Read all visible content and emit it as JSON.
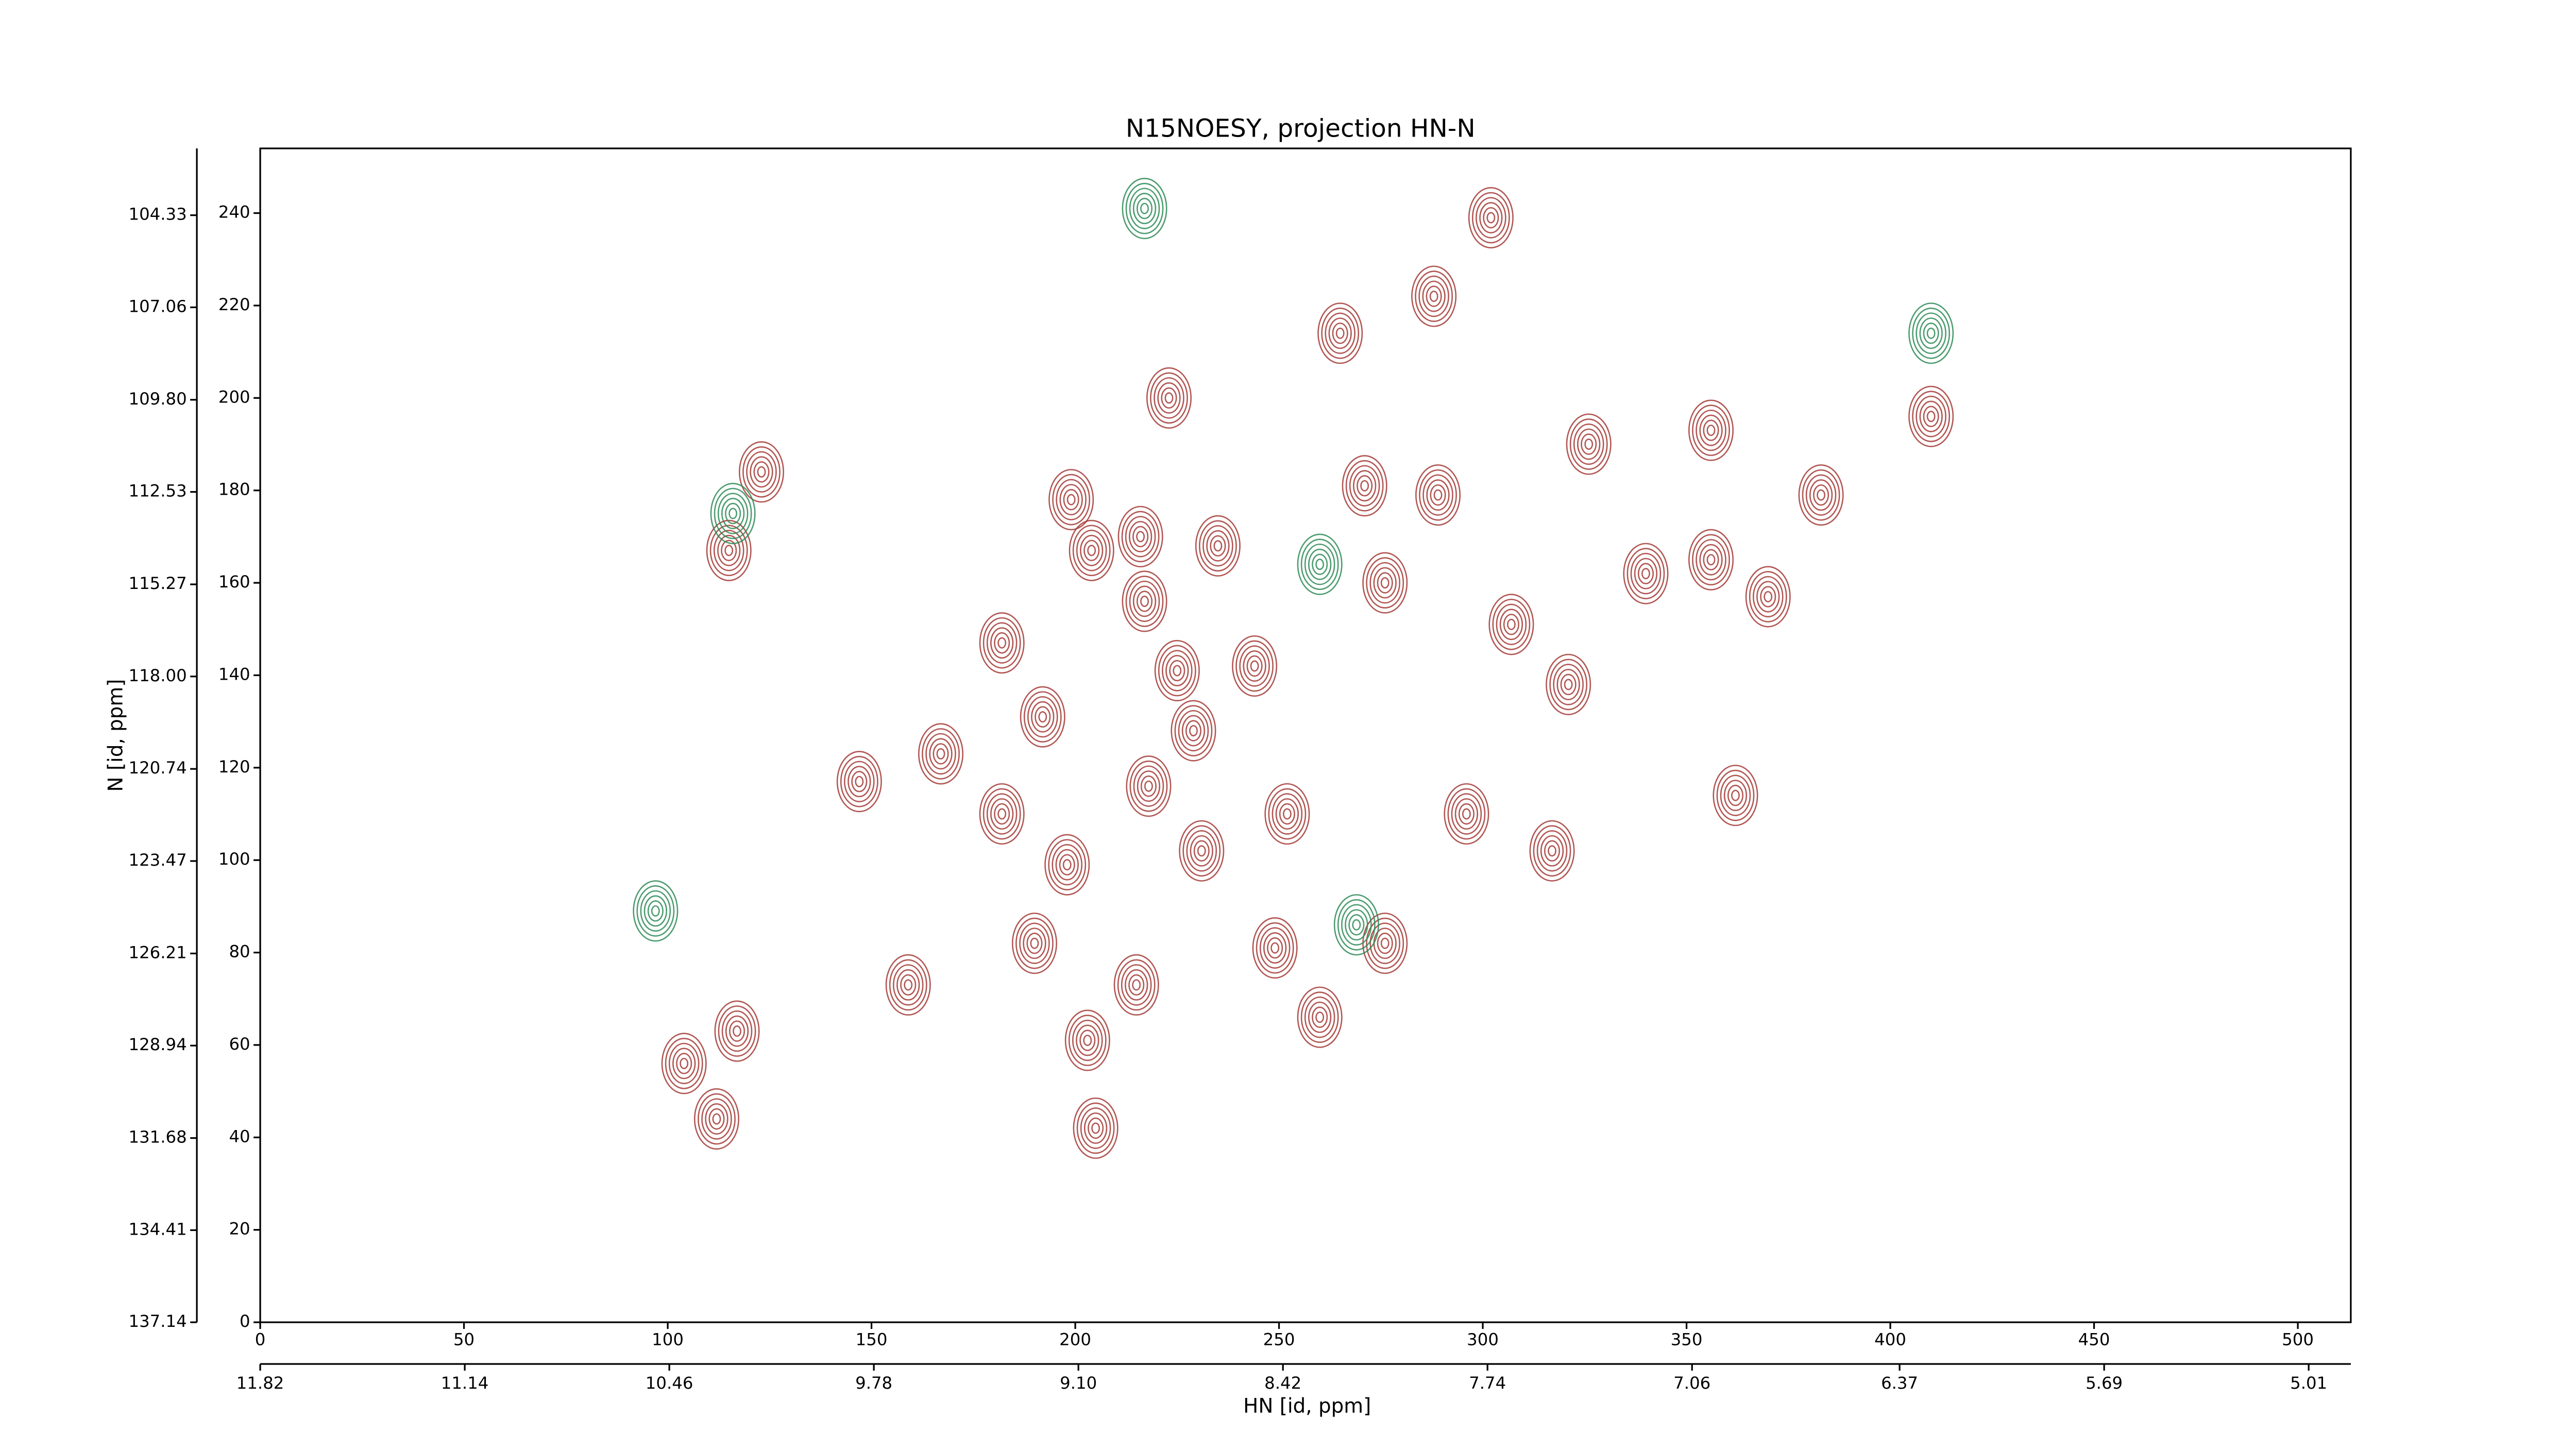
{
  "chart_data": {
    "type": "contour",
    "title": "N15NOESY, projection HN-N",
    "xlabel": "HN [id, ppm]",
    "ylabel": "N [id, ppm]",
    "xlim": [
      0,
      513
    ],
    "xticks": [
      0,
      50,
      100,
      150,
      200,
      250,
      300,
      350,
      400,
      450,
      500
    ],
    "x2lim": [
      11.82,
      4.87
    ],
    "x2ticks": [
      11.82,
      11.14,
      10.46,
      9.78,
      {
        "value": 9.1,
        "label": "9.10"
      },
      8.42,
      7.74,
      7.06,
      6.37,
      5.69,
      5.01
    ],
    "ylim": [
      0,
      254
    ],
    "yticks": [
      0,
      20,
      40,
      60,
      80,
      100,
      120,
      140,
      160,
      180,
      200,
      220,
      240
    ],
    "y2lim": [
      137.14,
      102.35
    ],
    "y2ticks": [
      137.14,
      134.41,
      131.68,
      128.94,
      126.21,
      123.47,
      120.74,
      {
        "value": 118,
        "label": "118.00"
      },
      115.27,
      112.53,
      {
        "value": 109.8,
        "label": "109.80"
      },
      107.06,
      104.33
    ],
    "series": [
      {
        "color": "#a33a35",
        "x": [
          302,
          288,
          265,
          223,
          326,
          356,
          271,
          289,
          383,
          123,
          115,
          199,
          204,
          216,
          235,
          276,
          340,
          356,
          370,
          182,
          217,
          244,
          225,
          229,
          147,
          167,
          192,
          218,
          362,
          307,
          321,
          198,
          190,
          215,
          249,
          276,
          260,
          203,
          159,
          104,
          117,
          112,
          205,
          410,
          296,
          317,
          231,
          252,
          182
        ],
        "y": [
          239,
          222,
          214,
          200,
          190,
          193,
          181,
          179,
          179,
          184,
          167,
          178,
          167,
          170,
          168,
          160,
          162,
          165,
          157,
          147,
          156,
          142,
          141,
          128,
          117,
          123,
          131,
          116,
          114,
          151,
          138,
          99,
          82,
          73,
          81,
          82,
          66,
          61,
          73,
          56,
          63,
          44,
          42,
          196,
          110,
          102,
          102,
          110,
          110
        ]
      },
      {
        "color": "#2e8b57",
        "x": [
          217,
          97,
          260,
          410,
          116,
          269
        ],
        "y": [
          241,
          89,
          164,
          214,
          175,
          86
        ]
      }
    ]
  }
}
